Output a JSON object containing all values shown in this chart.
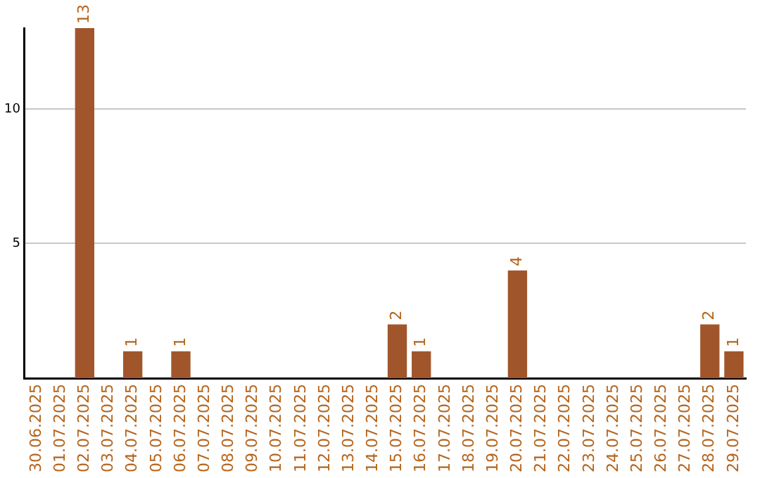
{
  "chart_data": {
    "type": "bar",
    "categories": [
      "30.06.2025",
      "01.07.2025",
      "02.07.2025",
      "03.07.2025",
      "04.07.2025",
      "05.07.2025",
      "06.07.2025",
      "07.07.2025",
      "08.07.2025",
      "09.07.2025",
      "10.07.2025",
      "11.07.2025",
      "12.07.2025",
      "13.07.2025",
      "14.07.2025",
      "15.07.2025",
      "16.07.2025",
      "17.07.2025",
      "18.07.2025",
      "19.07.2025",
      "20.07.2025",
      "21.07.2025",
      "22.07.2025",
      "23.07.2025",
      "24.07.2025",
      "25.07.2025",
      "26.07.2025",
      "27.07.2025",
      "28.07.2025",
      "29.07.2025"
    ],
    "values": [
      null,
      null,
      13,
      null,
      1,
      null,
      1,
      null,
      null,
      null,
      null,
      null,
      null,
      null,
      null,
      2,
      1,
      null,
      null,
      null,
      4,
      null,
      null,
      null,
      null,
      null,
      null,
      null,
      2,
      1
    ],
    "color": "#a0562a",
    "ylim": [
      0,
      13
    ],
    "yticks": [
      5,
      10
    ],
    "grid": "y",
    "data_labels": true,
    "legend": false
  }
}
